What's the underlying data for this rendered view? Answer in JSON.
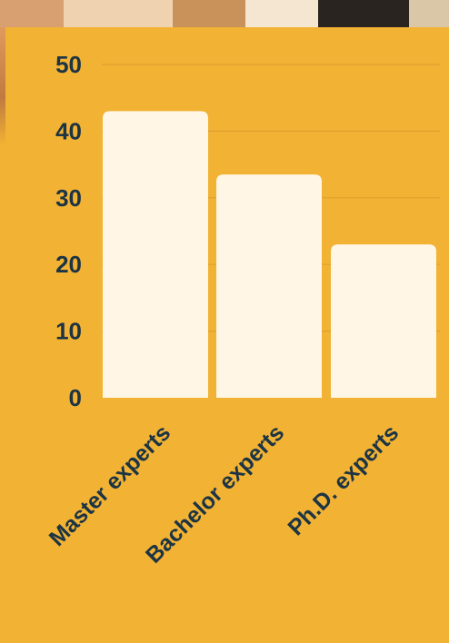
{
  "chart_data": {
    "type": "bar",
    "categories": [
      "Master experts",
      "Bachelor experts",
      "Ph.D. experts"
    ],
    "values": [
      43,
      33.5,
      23
    ],
    "ylim": [
      0,
      50
    ],
    "yticks": [
      0,
      10,
      20,
      30,
      40,
      50
    ],
    "title": "",
    "xlabel": "",
    "ylabel": "",
    "grid": true,
    "legend": "none"
  },
  "colors": {
    "background": "#f2b233",
    "bar": "#fff6e6",
    "text": "#1c3444",
    "grid": "#e0a030"
  }
}
